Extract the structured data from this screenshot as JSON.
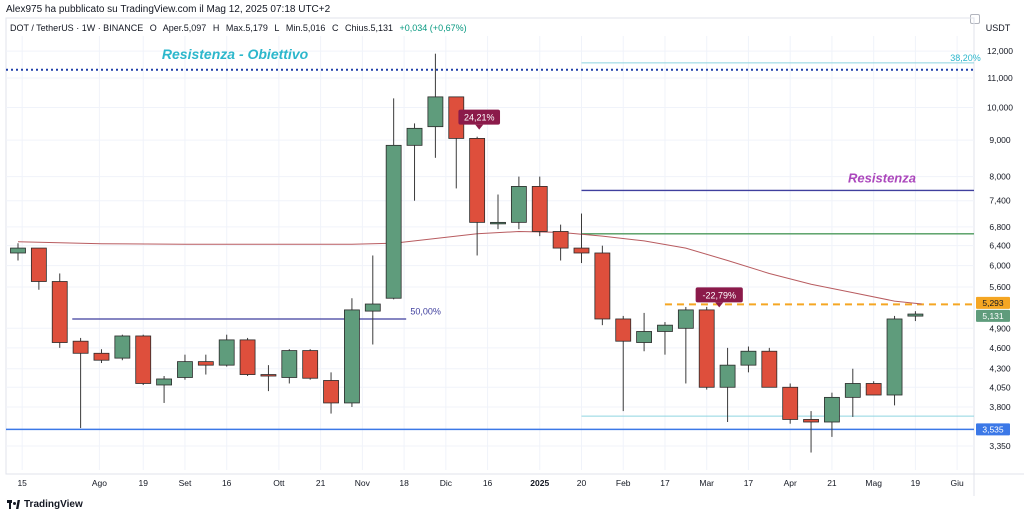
{
  "header": {
    "publisher": "Alex975 ha pubblicato su TradingView.com il Mag 12, 2025 07:18 UTC+2",
    "symbol": "DOT / TetherUS · 1W · BINANCE",
    "open_label": "O",
    "open_value": "Aper.5,097",
    "high_label": "H",
    "high_value": "Max.5,179",
    "low_label": "L",
    "low_value": "Min.5,016",
    "close_label": "C",
    "close_value": "Chius.5,131",
    "change": "+0,034 (+0,67%)"
  },
  "footer": {
    "logo_text": "TradingView",
    "logo_icon": "tradingview-logo-icon"
  },
  "settings_icon": "gear-icon",
  "colors": {
    "up": "#5f9c7c",
    "down": "#de4f3c",
    "ma": "#b85c60",
    "resistance_blue": "#3f3f9e",
    "support_green": "#4c9a5b",
    "support_blue": "#3b78e7",
    "dotted_blue": "#1f3fa8",
    "fib_line": "#8fd5e0",
    "dashed_orange": "#f5a623",
    "label_purple": "#8b1a4a",
    "annotation_cyan": "#2cb7cc",
    "annotation_magenta": "#ab47bc"
  },
  "chart_data": {
    "type": "candlestick",
    "currency": "USDT",
    "y_scale": "log",
    "ylim": [
      3.1,
      12.6
    ],
    "y_ticks": [
      3.35,
      3.8,
      4.05,
      4.3,
      4.6,
      4.9,
      5.6,
      6.0,
      6.4,
      6.8,
      7.4,
      8.0,
      9.0,
      10.0,
      11.0,
      12.0
    ],
    "y_tick_labels": [
      "3,350",
      "3,800",
      "4,050",
      "4,300",
      "4,600",
      "4,900",
      "5,600",
      "6,000",
      "6,400",
      "6,800",
      "7,400",
      "8,000",
      "9,000",
      "10,000",
      "11,000",
      "12,000"
    ],
    "x_ticks": [
      {
        "i": 0.2,
        "label": "15",
        "bold": false
      },
      {
        "i": 3.9,
        "label": "Ago",
        "bold": false
      },
      {
        "i": 6.0,
        "label": "19",
        "bold": false
      },
      {
        "i": 8.0,
        "label": "Set",
        "bold": false
      },
      {
        "i": 10.0,
        "label": "16",
        "bold": false
      },
      {
        "i": 12.5,
        "label": "Ott",
        "bold": false
      },
      {
        "i": 14.5,
        "label": "21",
        "bold": false
      },
      {
        "i": 16.5,
        "label": "Nov",
        "bold": false
      },
      {
        "i": 18.5,
        "label": "18",
        "bold": false
      },
      {
        "i": 20.5,
        "label": "Dic",
        "bold": false
      },
      {
        "i": 22.5,
        "label": "16",
        "bold": false
      },
      {
        "i": 25.0,
        "label": "2025",
        "bold": true
      },
      {
        "i": 27.0,
        "label": "20",
        "bold": false
      },
      {
        "i": 29.0,
        "label": "Feb",
        "bold": false
      },
      {
        "i": 31.0,
        "label": "17",
        "bold": false
      },
      {
        "i": 33.0,
        "label": "Mar",
        "bold": false
      },
      {
        "i": 35.0,
        "label": "17",
        "bold": false
      },
      {
        "i": 37.0,
        "label": "Apr",
        "bold": false
      },
      {
        "i": 39.0,
        "label": "21",
        "bold": false
      },
      {
        "i": 41.0,
        "label": "Mag",
        "bold": false
      },
      {
        "i": 43.0,
        "label": "19",
        "bold": false
      },
      {
        "i": 45.0,
        "label": "Giu",
        "bold": false
      }
    ],
    "candles": [
      {
        "o": 6.25,
        "h": 6.45,
        "l": 6.1,
        "c": 6.35
      },
      {
        "o": 6.35,
        "h": 6.35,
        "l": 5.55,
        "c": 5.7
      },
      {
        "o": 5.7,
        "h": 5.85,
        "l": 4.6,
        "c": 4.68
      },
      {
        "o": 4.7,
        "h": 4.75,
        "l": 3.55,
        "c": 4.52
      },
      {
        "o": 4.52,
        "h": 4.58,
        "l": 4.38,
        "c": 4.42
      },
      {
        "o": 4.45,
        "h": 4.8,
        "l": 4.42,
        "c": 4.78
      },
      {
        "o": 4.78,
        "h": 4.8,
        "l": 4.08,
        "c": 4.1
      },
      {
        "o": 4.08,
        "h": 4.2,
        "l": 3.85,
        "c": 4.16
      },
      {
        "o": 4.18,
        "h": 4.5,
        "l": 4.15,
        "c": 4.4
      },
      {
        "o": 4.4,
        "h": 4.5,
        "l": 4.22,
        "c": 4.35
      },
      {
        "o": 4.35,
        "h": 4.8,
        "l": 4.33,
        "c": 4.72
      },
      {
        "o": 4.72,
        "h": 4.75,
        "l": 4.2,
        "c": 4.22
      },
      {
        "o": 4.22,
        "h": 4.35,
        "l": 4.0,
        "c": 4.2
      },
      {
        "o": 4.18,
        "h": 4.58,
        "l": 4.1,
        "c": 4.56
      },
      {
        "o": 4.56,
        "h": 4.58,
        "l": 4.15,
        "c": 4.17
      },
      {
        "o": 4.14,
        "h": 4.25,
        "l": 3.72,
        "c": 3.85
      },
      {
        "o": 3.85,
        "h": 5.4,
        "l": 3.8,
        "c": 5.2
      },
      {
        "o": 5.18,
        "h": 6.2,
        "l": 4.65,
        "c": 5.3
      },
      {
        "o": 5.4,
        "h": 10.3,
        "l": 5.38,
        "c": 8.85
      },
      {
        "o": 8.85,
        "h": 9.5,
        "l": 7.4,
        "c": 9.35
      },
      {
        "o": 9.4,
        "h": 11.9,
        "l": 8.5,
        "c": 10.35
      },
      {
        "o": 10.35,
        "h": 10.35,
        "l": 7.7,
        "c": 9.05
      },
      {
        "o": 9.05,
        "h": 9.1,
        "l": 6.2,
        "c": 6.9
      },
      {
        "o": 6.88,
        "h": 7.55,
        "l": 6.75,
        "c": 6.9
      },
      {
        "o": 6.9,
        "h": 8.0,
        "l": 6.75,
        "c": 7.75
      },
      {
        "o": 7.75,
        "h": 8.0,
        "l": 6.6,
        "c": 6.7
      },
      {
        "o": 6.7,
        "h": 6.85,
        "l": 6.1,
        "c": 6.35
      },
      {
        "o": 6.35,
        "h": 7.1,
        "l": 6.05,
        "c": 6.25
      },
      {
        "o": 6.25,
        "h": 6.4,
        "l": 4.95,
        "c": 5.05
      },
      {
        "o": 5.05,
        "h": 5.1,
        "l": 3.75,
        "c": 4.7
      },
      {
        "o": 4.68,
        "h": 5.15,
        "l": 4.55,
        "c": 4.85
      },
      {
        "o": 4.85,
        "h": 5.0,
        "l": 4.5,
        "c": 4.95
      },
      {
        "o": 4.9,
        "h": 5.25,
        "l": 4.1,
        "c": 5.2
      },
      {
        "o": 5.2,
        "h": 5.25,
        "l": 4.02,
        "c": 4.05
      },
      {
        "o": 4.05,
        "h": 4.6,
        "l": 3.62,
        "c": 4.35
      },
      {
        "o": 4.35,
        "h": 4.62,
        "l": 4.25,
        "c": 4.55
      },
      {
        "o": 4.55,
        "h": 4.6,
        "l": 4.05,
        "c": 4.05
      },
      {
        "o": 4.05,
        "h": 4.1,
        "l": 3.6,
        "c": 3.65
      },
      {
        "o": 3.65,
        "h": 3.75,
        "l": 3.28,
        "c": 3.62
      },
      {
        "o": 3.62,
        "h": 3.98,
        "l": 3.45,
        "c": 3.92
      },
      {
        "o": 3.92,
        "h": 4.3,
        "l": 3.68,
        "c": 4.1
      },
      {
        "o": 4.1,
        "h": 4.13,
        "l": 3.95,
        "c": 3.95
      },
      {
        "o": 3.95,
        "h": 5.1,
        "l": 3.82,
        "c": 5.05
      },
      {
        "o": 5.097,
        "h": 5.179,
        "l": 5.016,
        "c": 5.131
      }
    ],
    "moving_average": {
      "x": [
        0,
        4,
        8,
        12,
        16,
        18,
        20,
        22,
        24,
        26,
        28,
        30,
        32,
        34,
        36,
        38,
        40,
        42,
        43.3
      ],
      "y": [
        6.48,
        6.44,
        6.43,
        6.43,
        6.43,
        6.45,
        6.55,
        6.65,
        6.7,
        6.68,
        6.6,
        6.5,
        6.35,
        6.1,
        5.85,
        5.65,
        5.5,
        5.35,
        5.3
      ]
    },
    "horizontal_lines": [
      {
        "name": "resistance-target-line",
        "y": 11.3,
        "x0": 0,
        "x1": 47,
        "color": "#1f3fa8",
        "style": "dotted",
        "width": 2
      },
      {
        "name": "fib-382-line",
        "y": 11.55,
        "x0": 27,
        "x1": 47,
        "color": "#8fd5e0",
        "style": "solid",
        "width": 1
      },
      {
        "name": "resistance-line",
        "y": 7.65,
        "x0": 27,
        "x1": 47,
        "color": "#3f3f9e",
        "style": "solid",
        "width": 1.3
      },
      {
        "name": "green-level-line",
        "y": 6.65,
        "x0": 27,
        "x1": 47,
        "color": "#4c9a5b",
        "style": "solid",
        "width": 1.3
      },
      {
        "name": "dashed-orange-line",
        "y": 5.293,
        "x0": 31,
        "x1": 47,
        "color": "#f5a623",
        "style": "dashed",
        "width": 2
      },
      {
        "name": "fib-50-line",
        "y": 5.05,
        "x0": 2.6,
        "x1": 18.6,
        "color": "#3f3f9e",
        "style": "solid",
        "width": 1.3
      },
      {
        "name": "fib-bottom-line",
        "y": 3.69,
        "x0": 27,
        "x1": 47,
        "color": "#8fd5e0",
        "style": "solid",
        "width": 1
      },
      {
        "name": "support-line",
        "y": 3.535,
        "x0": 0,
        "x1": 47,
        "color": "#3b78e7",
        "style": "solid",
        "width": 1.5
      }
    ],
    "price_labels": [
      {
        "text": "5,293",
        "y": 5.32,
        "bg": "#f5a623",
        "fg": "#131722"
      },
      {
        "text": "5,131",
        "y": 5.1,
        "bg": "#5f9c7c",
        "fg": "#ffffff"
      },
      {
        "text": "3,535",
        "y": 3.535,
        "bg": "#3b78e7",
        "fg": "#ffffff"
      }
    ],
    "annotations": [
      {
        "text": "Resistenza - Obiettivo",
        "x": 10.4,
        "y": 11.7,
        "color": "#2cb7cc",
        "size": 14,
        "italic": true,
        "bold": true,
        "anchor": "middle"
      },
      {
        "text": "Resistenza",
        "x": 41.4,
        "y": 7.85,
        "color": "#ab47bc",
        "size": 13,
        "italic": true,
        "bold": true,
        "anchor": "middle"
      },
      {
        "text": "50,00%",
        "x": 18.8,
        "y": 5.12,
        "color": "#3f3f9e",
        "size": 9,
        "italic": false,
        "bold": false,
        "anchor": "start"
      },
      {
        "text": "38,20%",
        "x": 45.4,
        "y": 11.62,
        "color": "#2cb7cc",
        "size": 9,
        "italic": false,
        "bold": false,
        "anchor": "middle"
      }
    ],
    "callouts": [
      {
        "text": "24,21%",
        "x": 22.1,
        "y": 9.68,
        "color": "#8b1a4a"
      },
      {
        "text": "-22,79%",
        "x": 33.6,
        "y": 5.45,
        "color": "#8b1a4a"
      }
    ]
  }
}
